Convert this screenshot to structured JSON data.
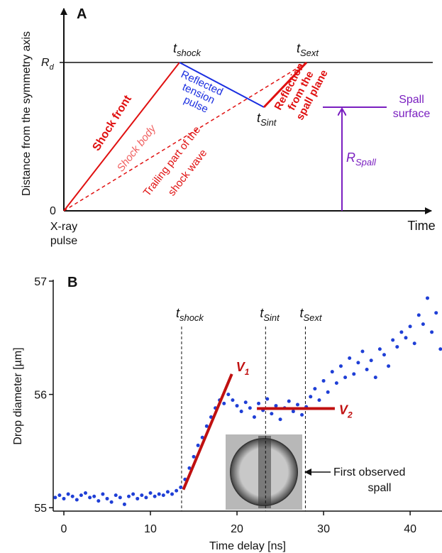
{
  "panel_a": {
    "label": "A",
    "y_axis_label": "Distance from the symmetry axis",
    "rd": {
      "main": "R",
      "sub": "d"
    },
    "zero": "0",
    "x_origin": [
      "X-ray",
      "pulse"
    ],
    "x_axis_label": "Time",
    "t_shock": {
      "main": "t",
      "sub": "shock"
    },
    "t_sext": {
      "main": "t",
      "sub": "Sext"
    },
    "t_sint": {
      "main": "t",
      "sub": "Sint"
    },
    "shock_front": "Shock front",
    "shock_body": "Shock body",
    "trailing": [
      "Trailing part of the",
      "shock wave"
    ],
    "reflected": [
      "Reflected",
      "tension",
      "pulse"
    ],
    "reflection": [
      "Reflection",
      "from the",
      "spall plane"
    ],
    "spall_surface": [
      "Spall",
      "surface"
    ],
    "r_spall": {
      "main": "R",
      "sub": "Spall"
    }
  },
  "chart_data": {
    "type": "scatter",
    "panel_label": "B",
    "x_label": "Time delay [ns]",
    "y_label": "Drop diameter [µm]",
    "xlim": [
      -1.23,
      43.68
    ],
    "ylim": [
      54.97,
      57
    ],
    "xticks": [
      0,
      10,
      20,
      30,
      40
    ],
    "yticks": [
      55,
      56,
      57
    ],
    "color": "#1f3fd6",
    "x": [
      -1,
      -0.5,
      0,
      0.5,
      1,
      1.5,
      2,
      2.5,
      3,
      3.5,
      4,
      4.5,
      5,
      5.5,
      6,
      6.5,
      7,
      7.5,
      8,
      8.5,
      9,
      9.5,
      10,
      10.5,
      11,
      11.5,
      12,
      12.5,
      13,
      13.5,
      14,
      14.5,
      15,
      15.5,
      16,
      16.5,
      17,
      17.5,
      18,
      18.5,
      19,
      19.5,
      20,
      20.5,
      21,
      21.5,
      22,
      22.5,
      23,
      23.5,
      24,
      24.5,
      25,
      25.5,
      26,
      26.5,
      27,
      27.5,
      28,
      28.5,
      29,
      29.5,
      30,
      30.5,
      31,
      31.5,
      32,
      32.5,
      33,
      33.5,
      34,
      34.5,
      35,
      35.5,
      36,
      36.5,
      37,
      37.5,
      38,
      38.5,
      39,
      39.5,
      40,
      40.5,
      41,
      41.5,
      42,
      42.5,
      43,
      43.5
    ],
    "values": [
      55.09,
      55.11,
      55.08,
      55.12,
      55.1,
      55.07,
      55.11,
      55.13,
      55.09,
      55.1,
      55.06,
      55.12,
      55.08,
      55.05,
      55.11,
      55.09,
      55.03,
      55.1,
      55.12,
      55.08,
      55.11,
      55.09,
      55.13,
      55.1,
      55.12,
      55.11,
      55.14,
      55.12,
      55.15,
      55.18,
      55.25,
      55.35,
      55.45,
      55.55,
      55.62,
      55.72,
      55.8,
      55.88,
      55.95,
      55.92,
      56.0,
      55.95,
      55.9,
      55.85,
      55.93,
      55.88,
      55.8,
      55.92,
      55.86,
      55.96,
      55.83,
      55.9,
      55.78,
      55.88,
      55.94,
      55.85,
      55.91,
      55.82,
      55.89,
      55.98,
      56.05,
      55.95,
      56.12,
      56.02,
      56.2,
      56.1,
      56.25,
      56.15,
      56.32,
      56.18,
      56.28,
      56.38,
      56.22,
      56.3,
      56.15,
      56.4,
      56.35,
      56.25,
      56.48,
      56.42,
      56.55,
      56.5,
      56.6,
      56.45,
      56.7,
      56.62,
      56.85,
      56.55,
      56.72,
      56.4
    ],
    "markers": [
      {
        "main": "t",
        "sub": "shock",
        "value": 13.6
      },
      {
        "main": "t",
        "sub": "Sint",
        "value": 23.3
      },
      {
        "main": "t",
        "sub": "Sext",
        "value": 27.9
      }
    ],
    "fits": [
      {
        "main": "V",
        "sub": "1",
        "x": [
          13.8,
          19.4
        ],
        "y": [
          55.16,
          56.18
        ]
      },
      {
        "main": "V",
        "sub": "2",
        "x": [
          22.3,
          31.3
        ],
        "y": [
          55.875,
          55.875
        ]
      }
    ],
    "fit_color": "#c01010",
    "annotation": [
      "First observed",
      "spall"
    ]
  }
}
